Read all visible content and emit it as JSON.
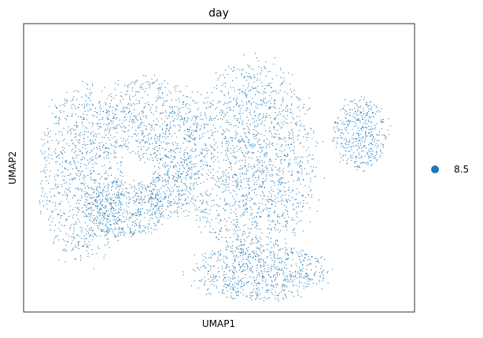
{
  "chart_data": {
    "type": "scatter",
    "title": "day",
    "xlabel": "UMAP1",
    "ylabel": "UMAP2",
    "xticks": [],
    "yticks": [],
    "grid": false,
    "legend_position": "right",
    "series": [
      {
        "name": "8.5",
        "color": "#1f77b4"
      }
    ],
    "clusters": [
      {
        "cx": 0.58,
        "cy": 0.47,
        "rx": 0.17,
        "ry": 0.33,
        "weight": 0.33
      },
      {
        "cx": 0.15,
        "cy": 0.52,
        "rx": 0.11,
        "ry": 0.3,
        "weight": 0.18
      },
      {
        "cx": 0.32,
        "cy": 0.33,
        "rx": 0.13,
        "ry": 0.14,
        "weight": 0.11
      },
      {
        "cx": 0.26,
        "cy": 0.64,
        "rx": 0.1,
        "ry": 0.1,
        "weight": 0.1
      },
      {
        "cx": 0.6,
        "cy": 0.86,
        "rx": 0.17,
        "ry": 0.1,
        "weight": 0.14
      },
      {
        "cx": 0.38,
        "cy": 0.55,
        "rx": 0.06,
        "ry": 0.12,
        "weight": 0.06
      },
      {
        "cx": 0.86,
        "cy": 0.38,
        "rx": 0.07,
        "ry": 0.12,
        "weight": 0.08
      }
    ]
  }
}
